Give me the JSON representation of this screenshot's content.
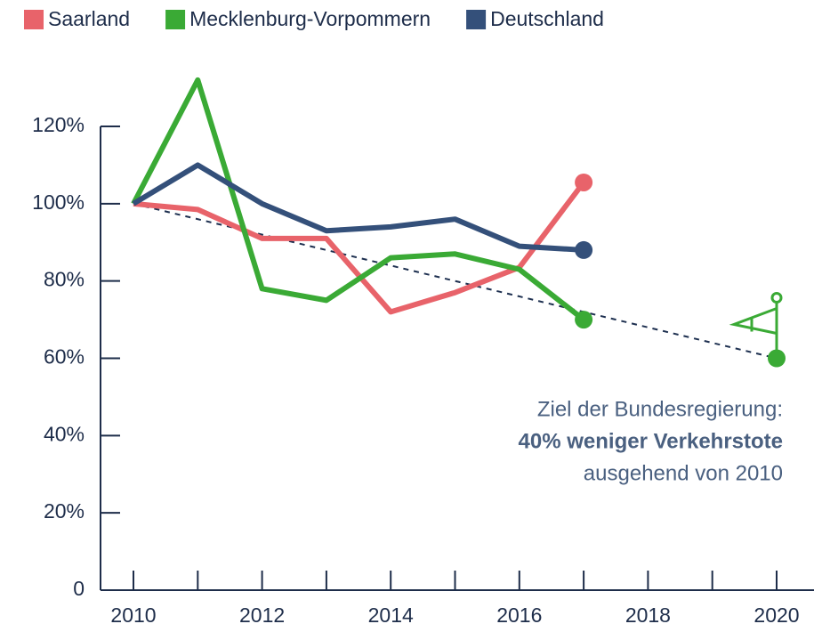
{
  "chart_data": {
    "type": "line",
    "x": [
      2010,
      2011,
      2012,
      2013,
      2014,
      2015,
      2016,
      2017
    ],
    "series": [
      {
        "name": "Saarland",
        "color": "#e8636a",
        "values": [
          100,
          98.5,
          91,
          91,
          72,
          77,
          83.5,
          105.5
        ]
      },
      {
        "name": "Mecklenburg-Vorpommern",
        "color": "#3aaa35",
        "values": [
          100,
          132,
          78,
          75,
          86,
          87,
          83,
          70
        ]
      },
      {
        "name": "Deutschland",
        "color": "#34507a",
        "values": [
          100,
          110,
          100,
          93,
          94,
          96,
          89,
          88
        ]
      }
    ],
    "target": {
      "x": [
        2010,
        2020
      ],
      "values": [
        100,
        60
      ],
      "color": "#1e3050",
      "point_color": "#3aaa35"
    },
    "annotation": [
      "Ziel der Bundesregierung:",
      "40% weniger Verkehrstote",
      "ausgehend von 2010"
    ],
    "xlim": [
      2010,
      2020
    ],
    "xticks": [
      2010,
      2012,
      2014,
      2016,
      2018,
      2020
    ],
    "xminorticks": [
      2011,
      2013,
      2015,
      2017,
      2019
    ],
    "ylim": [
      0,
      120
    ],
    "yticks": [
      0,
      {
        "value": 20,
        "label": "20%"
      },
      {
        "value": 40,
        "label": "40%"
      },
      {
        "value": 60,
        "label": "60%"
      },
      {
        "value": 80,
        "label": "80%"
      },
      {
        "value": 100,
        "label": "100%"
      },
      {
        "value": 120,
        "label": "120%"
      }
    ],
    "legend": "top-left"
  }
}
